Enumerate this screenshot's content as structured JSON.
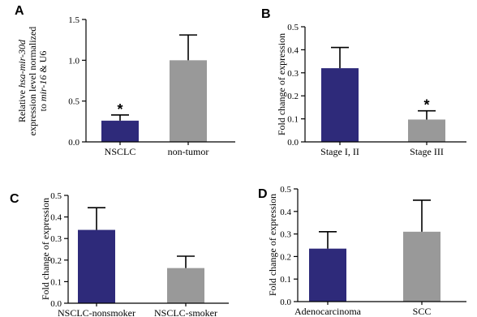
{
  "chart_data": [
    {
      "panel": "A",
      "type": "bar",
      "categories": [
        "NSCLC",
        "non-tumor"
      ],
      "values": [
        0.26,
        1.0
      ],
      "errors": [
        0.07,
        0.31
      ],
      "colors": [
        "#2e2a7a",
        "#999999"
      ],
      "significance": [
        "*",
        ""
      ],
      "ylabel_lines": [
        [
          {
            "t": "Relative "
          },
          {
            "t": "hsa-mir-30d",
            "i": true
          }
        ],
        [
          {
            "t": "expression level normalized"
          }
        ],
        [
          {
            "t": "to "
          },
          {
            "t": "mir-16",
            "i": true
          },
          {
            "t": " & U6"
          }
        ]
      ],
      "ylim": [
        0,
        1.5
      ],
      "yticks": [
        0.0,
        0.5,
        1.0,
        1.5
      ],
      "ytick_labels": [
        "0.0",
        "0.5",
        "1.0",
        "1.5"
      ]
    },
    {
      "panel": "B",
      "type": "bar",
      "categories": [
        "Stage I, II",
        "Stage III"
      ],
      "values": [
        0.32,
        0.097
      ],
      "errors": [
        0.09,
        0.038
      ],
      "colors": [
        "#2e2a7a",
        "#999999"
      ],
      "significance": [
        "",
        "*"
      ],
      "ylabel_lines": [
        [
          {
            "t": "Fold change of expression"
          }
        ]
      ],
      "ylim": [
        0,
        0.5
      ],
      "yticks": [
        0.0,
        0.1,
        0.2,
        0.3,
        0.4,
        0.5
      ],
      "ytick_labels": [
        "0.0",
        "0.1",
        "0.2",
        "0.3",
        "0.4",
        "0.5"
      ]
    },
    {
      "panel": "C",
      "type": "bar",
      "categories": [
        "NSCLC-nonsmoker",
        "NSCLC-smoker"
      ],
      "values": [
        0.34,
        0.163
      ],
      "errors": [
        0.103,
        0.055
      ],
      "colors": [
        "#2e2a7a",
        "#999999"
      ],
      "significance": [
        "",
        ""
      ],
      "ylabel_lines": [
        [
          {
            "t": "Fold change of expression"
          }
        ]
      ],
      "ylim": [
        0,
        0.5
      ],
      "yticks": [
        0.0,
        0.1,
        0.2,
        0.3,
        0.4,
        0.5
      ],
      "ytick_labels": [
        "0.0",
        "0.1",
        "0.2",
        "0.3",
        "0.4",
        "0.5"
      ]
    },
    {
      "panel": "D",
      "type": "bar",
      "categories": [
        "Adenocarcinoma",
        "SCC"
      ],
      "values": [
        0.235,
        0.31
      ],
      "errors": [
        0.075,
        0.14
      ],
      "colors": [
        "#2e2a7a",
        "#999999"
      ],
      "significance": [
        "",
        ""
      ],
      "ylabel_lines": [
        [
          {
            "t": "Fold change of expression"
          }
        ]
      ],
      "ylim": [
        0,
        0.5
      ],
      "yticks": [
        0.0,
        0.1,
        0.2,
        0.3,
        0.4,
        0.5
      ],
      "ytick_labels": [
        "0.0",
        "0.1",
        "0.2",
        "0.3",
        "0.4",
        "0.5"
      ]
    }
  ]
}
